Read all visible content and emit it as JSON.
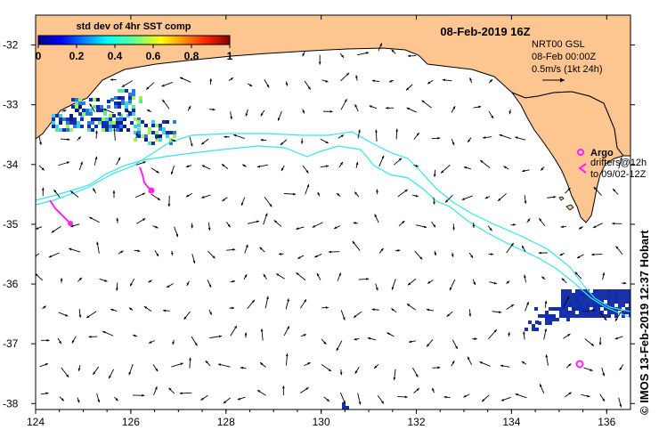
{
  "map": {
    "date_title": "08-Feb-2019 16Z",
    "lon_ticks": [
      "124",
      "126",
      "128",
      "130",
      "132",
      "134",
      "136"
    ],
    "lat_ticks": [
      "-32",
      "-33",
      "-34",
      "-35",
      "-36",
      "-37",
      "-38"
    ],
    "lon_range": [
      124,
      136.5
    ],
    "lat_range": [
      -31.5,
      -38.1
    ]
  },
  "colorbar": {
    "title": "std dev of 4hr SST comp",
    "ticks": [
      "0",
      "0.2",
      "0.4",
      "0.6",
      "0.8",
      "1"
    ]
  },
  "current_legend": {
    "source": "NRT00 GSL",
    "time": "08-Feb 00:00Z",
    "scale": "0.5m/s (1kt 24h)"
  },
  "argo_legend": {
    "title": "Argo",
    "line1": "drifters@12h",
    "line2": "to 09/02-12Z"
  },
  "credit": "© IMOS 13-Feb-2019 12:37 Hobart",
  "colors": {
    "land": "#fdc58f",
    "coast": "#000000",
    "contour": "#33e6ee",
    "argo": "#ff22ff",
    "sst_high": "#1c31a6"
  }
}
